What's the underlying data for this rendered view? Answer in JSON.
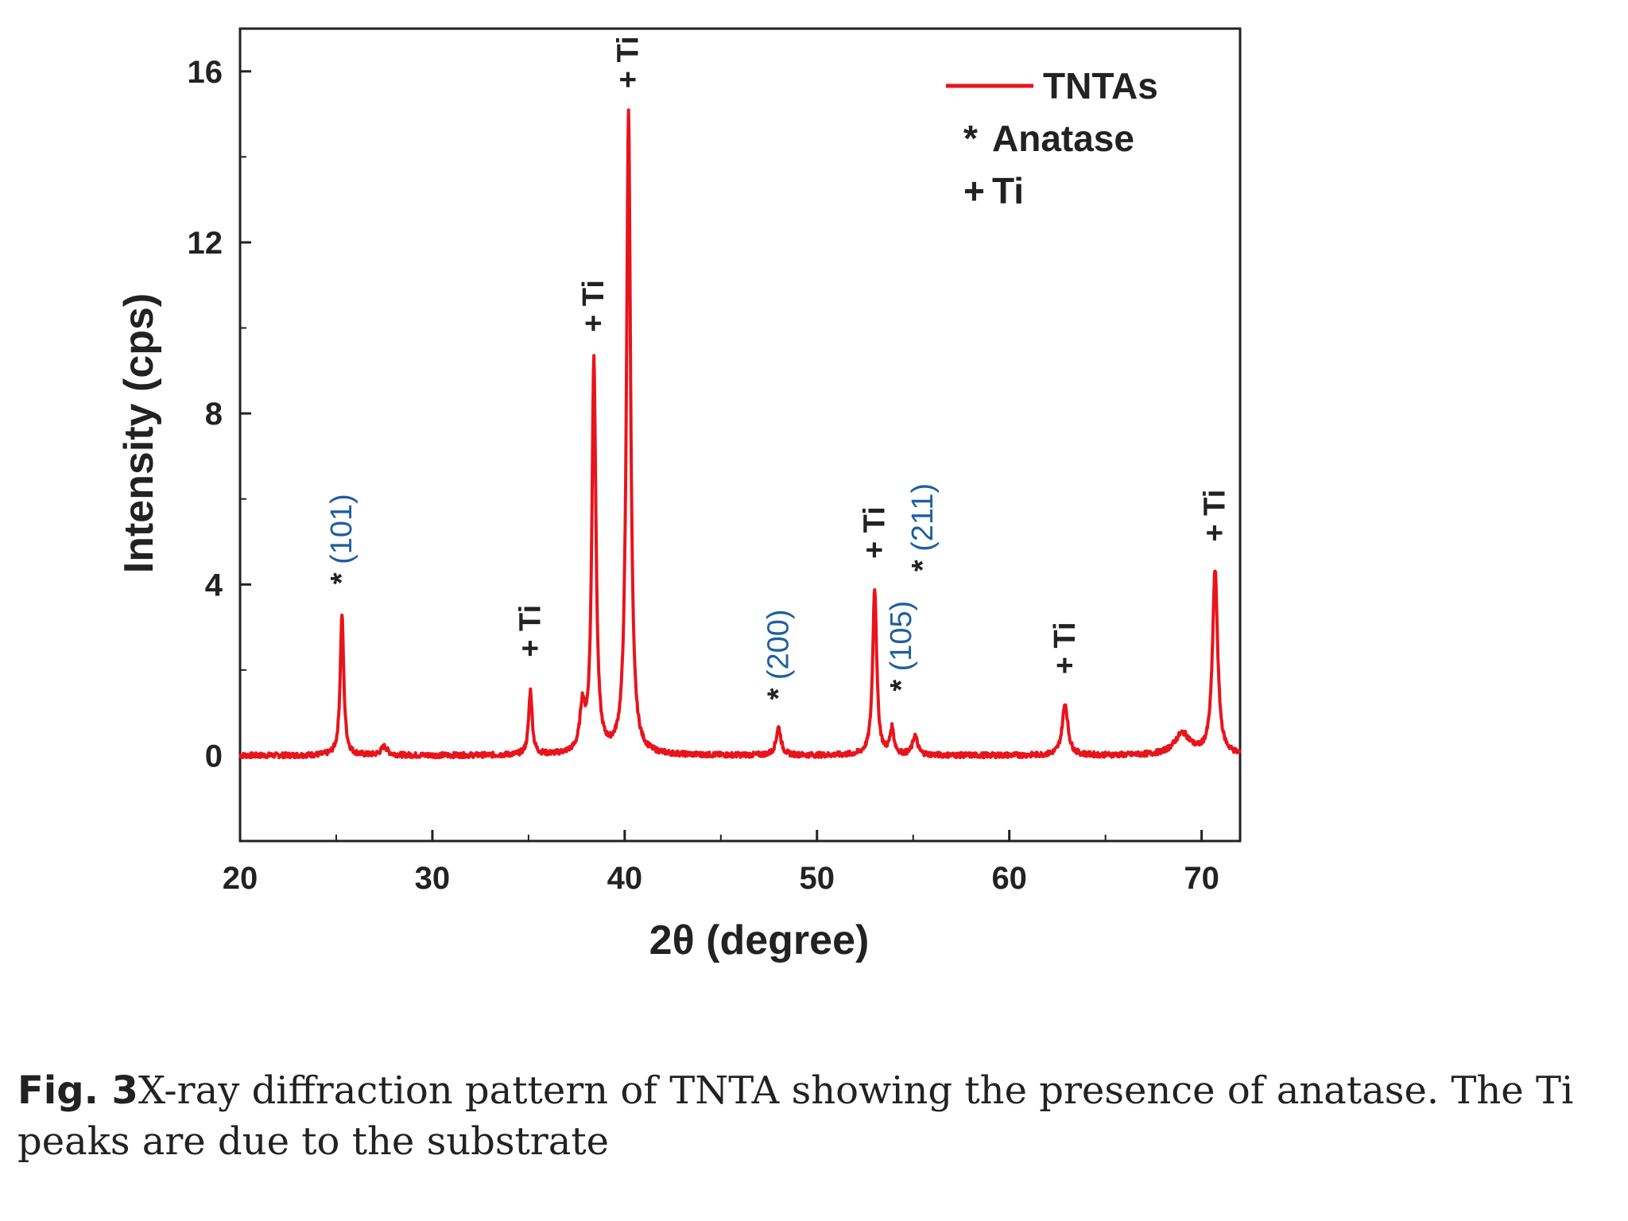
{
  "chart_data": {
    "type": "line",
    "xlabel": "2θ (degree)",
    "ylabel": "Intensity (cps)",
    "xlim": [
      20,
      72
    ],
    "ylim": [
      -2,
      17
    ],
    "xticks": [
      20,
      30,
      40,
      50,
      60,
      70
    ],
    "yticks": [
      0,
      4,
      8,
      12,
      16
    ],
    "grid": false,
    "legend": {
      "position": "top-right",
      "entries": [
        {
          "marker": "line",
          "label": "TNTAs"
        },
        {
          "marker": "*",
          "label": "Anatase"
        },
        {
          "marker": "+",
          "label": "Ti"
        }
      ]
    },
    "series": [
      {
        "name": "TNTAs",
        "color": "#e8141c",
        "baseline": 0,
        "peaks": [
          {
            "x": 25.3,
            "height": 3.3,
            "width": 0.22
          },
          {
            "x": 27.5,
            "height": 0.2,
            "width": 0.4
          },
          {
            "x": 35.1,
            "height": 1.5,
            "width": 0.22
          },
          {
            "x": 37.8,
            "height": 1.0,
            "width": 0.3
          },
          {
            "x": 38.4,
            "height": 9.2,
            "width": 0.25
          },
          {
            "x": 40.2,
            "height": 15.0,
            "width": 0.26
          },
          {
            "x": 48.0,
            "height": 0.65,
            "width": 0.3
          },
          {
            "x": 53.0,
            "height": 3.9,
            "width": 0.25
          },
          {
            "x": 53.9,
            "height": 0.6,
            "width": 0.25
          },
          {
            "x": 55.1,
            "height": 0.45,
            "width": 0.3
          },
          {
            "x": 62.9,
            "height": 1.2,
            "width": 0.35
          },
          {
            "x": 69.0,
            "height": 0.5,
            "width": 1.0
          },
          {
            "x": 70.7,
            "height": 4.3,
            "width": 0.32
          }
        ]
      }
    ],
    "annotations": [
      {
        "x": 25.3,
        "y": 4.0,
        "marker": "*",
        "label": "(101)",
        "label_color": "#1f5f9e"
      },
      {
        "x": 35.1,
        "y": 2.3,
        "marker": "+",
        "label": "Ti",
        "label_color": "#222222"
      },
      {
        "x": 38.4,
        "y": 9.9,
        "marker": "+",
        "label": "Ti",
        "label_color": "#222222"
      },
      {
        "x": 40.2,
        "y": 15.6,
        "marker": "+",
        "label": "Ti",
        "label_color": "#222222"
      },
      {
        "x": 48.0,
        "y": 1.3,
        "marker": "*",
        "label": "(200)",
        "label_color": "#1f5f9e"
      },
      {
        "x": 53.0,
        "y": 4.6,
        "marker": "+",
        "label": "Ti",
        "label_color": "#222222"
      },
      {
        "x": 54.4,
        "y": 1.5,
        "marker": "*",
        "label": "(105)",
        "label_color": "#1f5f9e"
      },
      {
        "x": 55.5,
        "y": 4.3,
        "marker": "*",
        "label": "(211)",
        "label_color": "#1f5f9e"
      },
      {
        "x": 62.9,
        "y": 1.9,
        "marker": "+",
        "label": "Ti",
        "label_color": "#222222"
      },
      {
        "x": 70.7,
        "y": 5.0,
        "marker": "+",
        "label": "Ti",
        "label_color": "#222222"
      }
    ]
  },
  "caption": {
    "label": "Fig. 3",
    "text": "X-ray diffraction pattern of TNTA showing the presence of anatase. The Ti peaks are due to the substrate"
  }
}
